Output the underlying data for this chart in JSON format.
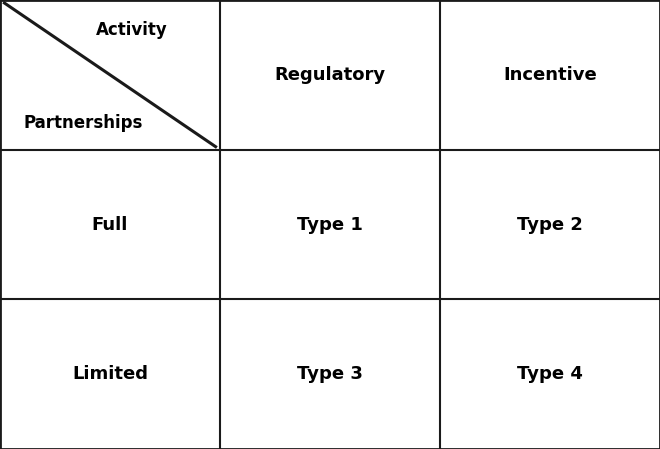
{
  "grid_rows": 3,
  "grid_cols": 3,
  "header_top_label": "Activity",
  "header_bottom_label": "Partnerships",
  "col_headers": [
    "Regulatory",
    "Incentive"
  ],
  "row_headers": [
    "Full",
    "Limited"
  ],
  "cell_labels": [
    [
      "Type 1",
      "Type 2"
    ],
    [
      "Type 3",
      "Type 4"
    ]
  ],
  "font_size_header_cell": 12,
  "font_size_col_row": 13,
  "font_size_cells": 13,
  "line_color": "#1a1a1a",
  "bg_color": "#ffffff",
  "text_color": "#000000",
  "border_lw": 2.0,
  "inner_lw": 1.5,
  "diagonal_lw": 2.2
}
